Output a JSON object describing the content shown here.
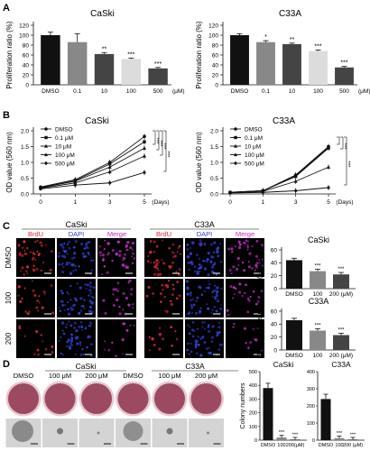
{
  "panels": {
    "A": "A",
    "B": "B",
    "C": "C",
    "D": "D"
  },
  "colors": {
    "black": "#111111",
    "dark_gray": "#444444",
    "mid_gray": "#888888",
    "light_gray": "#bdbdbd",
    "lighter_gray": "#dcdcdc",
    "brdu_red": "#d8283a",
    "dapi_blue": "#3040d0",
    "merge_magenta": "#c02cc0",
    "dish_red": "#9c4a62",
    "dish_rim": "#e6c9cf"
  },
  "panel_a": {
    "ylabel": "Proliferation ratio (%)",
    "unit": "(μM)",
    "charts": [
      {
        "title": "CaSki",
        "categories": [
          "DMSO",
          "0.1",
          "10",
          "100",
          "500"
        ],
        "values": [
          100,
          86,
          62,
          52,
          33
        ],
        "errors": [
          6,
          17,
          3,
          2,
          2
        ],
        "sig": [
          "",
          "",
          "**",
          "***",
          "***"
        ]
      },
      {
        "title": "C33A",
        "categories": [
          "DMSO",
          "0.1",
          "10",
          "100",
          "500"
        ],
        "values": [
          100,
          86,
          82,
          68,
          35
        ],
        "errors": [
          3,
          3,
          2,
          2,
          2
        ],
        "sig": [
          "",
          "*",
          "**",
          "***",
          "***"
        ]
      }
    ],
    "yticks": [
      "0",
      "20",
      "40",
      "60",
      "80",
      "100",
      "120"
    ]
  },
  "chart_data": [
    {
      "type": "bar",
      "title": "CaSki",
      "categories": [
        "DMSO",
        "0.1",
        "10",
        "100",
        "500"
      ],
      "values": [
        100,
        86,
        62,
        52,
        33
      ],
      "ylabel": "Proliferation ratio (%)",
      "xlabel": "(μM)",
      "ylim": [
        0,
        120
      ]
    },
    {
      "type": "bar",
      "title": "C33A",
      "categories": [
        "DMSO",
        "0.1",
        "10",
        "100",
        "500"
      ],
      "values": [
        100,
        86,
        82,
        68,
        35
      ],
      "ylabel": "Proliferation ratio (%)",
      "xlabel": "(μM)",
      "ylim": [
        0,
        120
      ]
    },
    {
      "type": "line",
      "title": "CaSki",
      "x": [
        0,
        1,
        3,
        5
      ],
      "xlabel": "(Days)",
      "ylabel": "OD value (560 nm)",
      "ylim": [
        0,
        2.0
      ],
      "series": [
        {
          "name": "DMSO",
          "values": [
            0.22,
            0.45,
            1.0,
            1.82
          ]
        },
        {
          "name": "0.1 μM",
          "values": [
            0.2,
            0.42,
            0.95,
            1.65
          ]
        },
        {
          "name": "10 μM",
          "values": [
            0.2,
            0.4,
            0.85,
            1.45
          ]
        },
        {
          "name": "100 μM",
          "values": [
            0.18,
            0.35,
            0.7,
            1.2
          ]
        },
        {
          "name": "500 μM",
          "values": [
            0.16,
            0.28,
            0.35,
            0.68
          ]
        }
      ]
    },
    {
      "type": "line",
      "title": "C33A",
      "x": [
        0,
        1,
        3,
        5
      ],
      "xlabel": "(Days)",
      "ylabel": "OD value (560 nm)",
      "ylim": [
        0,
        2.0
      ],
      "series": [
        {
          "name": "DMSO",
          "values": [
            0.05,
            0.1,
            0.6,
            1.5
          ]
        },
        {
          "name": "0.1 μM",
          "values": [
            0.05,
            0.1,
            0.58,
            1.48
          ]
        },
        {
          "name": "10 μM",
          "values": [
            0.05,
            0.1,
            0.55,
            1.45
          ]
        },
        {
          "name": "100 μM",
          "values": [
            0.04,
            0.08,
            0.4,
            0.85
          ]
        },
        {
          "name": "500 μM",
          "values": [
            0.03,
            0.05,
            0.1,
            0.2
          ]
        }
      ]
    },
    {
      "type": "bar",
      "title": "CaSki",
      "categories": [
        "DMSO",
        "100",
        "200"
      ],
      "values": [
        44,
        27,
        22
      ],
      "ylabel": "BrdU (+) cells (%)",
      "xlabel": "(μM)",
      "ylim": [
        0,
        60
      ]
    },
    {
      "type": "bar",
      "title": "C33A",
      "categories": [
        "DMSO",
        "100",
        "200"
      ],
      "values": [
        46,
        30,
        23
      ],
      "ylabel": "BrdU (+) cells (%)",
      "xlabel": "(μM)",
      "ylim": [
        0,
        60
      ]
    },
    {
      "type": "bar",
      "title": "CaSki",
      "categories": [
        "DMSO",
        "100",
        "200"
      ],
      "values": [
        380,
        20,
        5
      ],
      "ylabel": "Colony numbers",
      "xlabel": "(μM)",
      "ylim": [
        0,
        500
      ]
    },
    {
      "type": "bar",
      "title": "C33A",
      "categories": [
        "DMSO",
        "100",
        "200"
      ],
      "values": [
        240,
        12,
        4
      ],
      "ylabel": "Colony numbers",
      "xlabel": "(μM)",
      "ylim": [
        0,
        400
      ]
    }
  ],
  "panel_b": {
    "ylabel": "OD value (560 nm)",
    "xlabel": "(Days)",
    "xticks": [
      "0",
      "1",
      "3",
      "5"
    ],
    "yticks": [
      "0.0",
      "0.5",
      "1.0",
      "1.5",
      "2.0"
    ],
    "legend": [
      "DMSO",
      "0.1 μM",
      "10 μM",
      "100 μM",
      "500 μM"
    ],
    "titles": [
      "CaSki",
      "C33A"
    ],
    "sig": "***"
  },
  "panel_c": {
    "group_titles": [
      "CaSki",
      "C33A"
    ],
    "channels": [
      "BrdU",
      "DAPI",
      "Merge"
    ],
    "rows": [
      "DMSO",
      "100",
      "200"
    ],
    "bar_ylabel": "BrdU (+) cells (%)",
    "bar_titles": [
      "CaSki",
      "C33A"
    ],
    "bar_categories": [
      "DMSO",
      "100",
      "200 (μM)"
    ],
    "yticks": [
      "0",
      "20",
      "40",
      "60"
    ],
    "sig": "***"
  },
  "panel_d": {
    "group_titles": [
      "CaSki",
      "C33A"
    ],
    "conditions": [
      "DMSO",
      "100 μM",
      "200 μM",
      "DMSO",
      "100 μM",
      "200 μM"
    ],
    "bar_ylabel": "Colony numbers",
    "bar_titles": [
      "CaSki",
      "C33A"
    ],
    "bar_categories": [
      "DMSO",
      "100",
      "200(μM)"
    ],
    "bar_categories_2": [
      "DMSO",
      "100",
      "200 (μM)"
    ],
    "yticks_1": [
      "0",
      "100",
      "200",
      "300",
      "400",
      "500"
    ],
    "yticks_2": [
      "0",
      "100",
      "200",
      "300",
      "400"
    ],
    "sig": "***"
  }
}
